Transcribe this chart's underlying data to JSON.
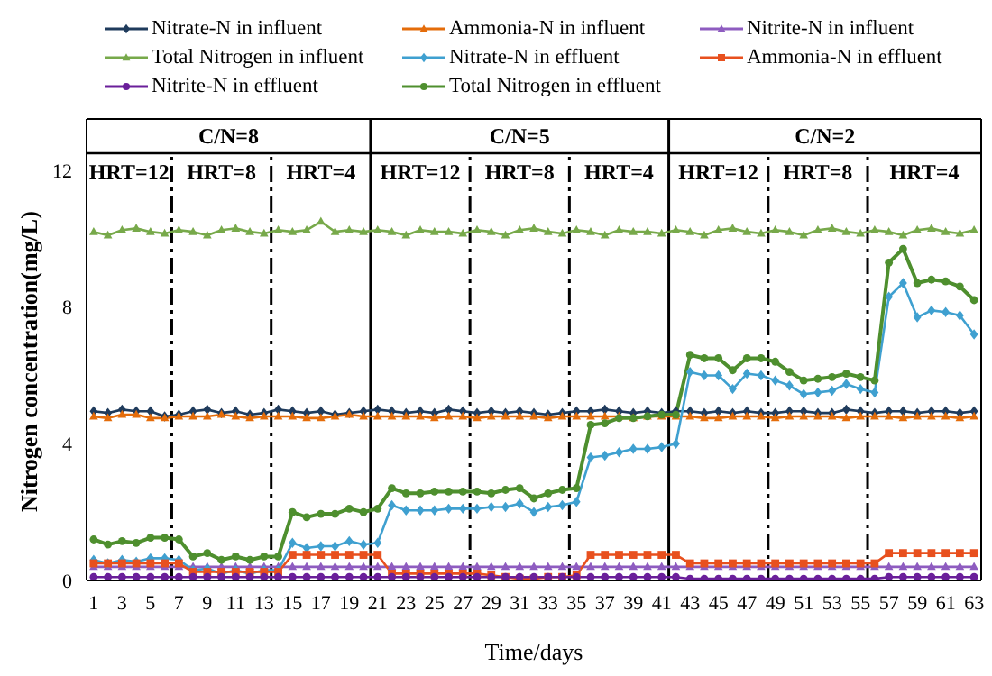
{
  "chart_data": {
    "type": "line",
    "xlabel": "Time/days",
    "ylabel": "Nitrogen concentration(mg/L)",
    "x": [
      1,
      2,
      3,
      4,
      5,
      6,
      7,
      8,
      9,
      10,
      11,
      12,
      13,
      14,
      15,
      16,
      17,
      18,
      19,
      20,
      21,
      22,
      23,
      24,
      25,
      26,
      27,
      28,
      29,
      30,
      31,
      32,
      33,
      34,
      35,
      36,
      37,
      38,
      39,
      40,
      41,
      42,
      43,
      44,
      45,
      46,
      47,
      48,
      49,
      50,
      51,
      52,
      53,
      54,
      55,
      56,
      57,
      58,
      59,
      60,
      61,
      62,
      63
    ],
    "xlim": [
      0.5,
      63.5
    ],
    "xticks": [
      1,
      3,
      5,
      7,
      9,
      11,
      13,
      15,
      17,
      19,
      21,
      23,
      25,
      27,
      29,
      31,
      33,
      35,
      37,
      39,
      41,
      43,
      45,
      47,
      49,
      51,
      53,
      55,
      57,
      59,
      61,
      63
    ],
    "ylim": [
      0,
      13.5
    ],
    "yticks": [
      0,
      4,
      8,
      12
    ],
    "grid": false,
    "legend": "top",
    "series": [
      {
        "name": "Nitrate-N in influent",
        "color": "#1f3b5c",
        "marker": "diamond",
        "values": [
          4.95,
          4.9,
          5.0,
          4.95,
          4.95,
          4.8,
          4.85,
          4.95,
          5.0,
          4.9,
          4.95,
          4.85,
          4.9,
          5.0,
          4.95,
          4.9,
          4.95,
          4.85,
          4.9,
          4.95,
          5.0,
          4.95,
          4.9,
          4.95,
          4.9,
          5.0,
          4.95,
          4.9,
          4.95,
          4.9,
          4.95,
          4.9,
          4.85,
          4.9,
          4.95,
          4.95,
          5.0,
          4.95,
          4.9,
          4.95,
          4.9,
          4.95,
          4.95,
          4.9,
          4.95,
          4.9,
          4.95,
          4.9,
          4.9,
          4.95,
          4.95,
          4.9,
          4.9,
          5.0,
          4.95,
          4.9,
          4.95,
          4.95,
          4.9,
          4.95,
          4.95,
          4.9,
          4.95
        ]
      },
      {
        "name": "Ammonia-N in influent",
        "color": "#e46c0a",
        "marker": "triangle",
        "values": [
          4.8,
          4.75,
          4.85,
          4.85,
          4.75,
          4.75,
          4.8,
          4.8,
          4.8,
          4.85,
          4.8,
          4.75,
          4.8,
          4.8,
          4.8,
          4.75,
          4.75,
          4.8,
          4.85,
          4.8,
          4.8,
          4.8,
          4.8,
          4.8,
          4.75,
          4.8,
          4.8,
          4.75,
          4.8,
          4.8,
          4.8,
          4.8,
          4.75,
          4.8,
          4.8,
          4.8,
          4.8,
          4.8,
          4.75,
          4.8,
          4.8,
          4.8,
          4.8,
          4.75,
          4.75,
          4.8,
          4.8,
          4.8,
          4.75,
          4.8,
          4.8,
          4.8,
          4.8,
          4.75,
          4.8,
          4.8,
          4.8,
          4.75,
          4.8,
          4.8,
          4.8,
          4.75,
          4.8
        ]
      },
      {
        "name": "Nitrite-N in influent",
        "color": "#8e5cc0",
        "marker": "triangle",
        "values": [
          0.4,
          0.4,
          0.4,
          0.4,
          0.4,
          0.4,
          0.4,
          0.4,
          0.4,
          0.4,
          0.4,
          0.4,
          0.4,
          0.4,
          0.4,
          0.4,
          0.4,
          0.4,
          0.4,
          0.4,
          0.4,
          0.4,
          0.4,
          0.4,
          0.4,
          0.4,
          0.4,
          0.4,
          0.4,
          0.4,
          0.4,
          0.4,
          0.4,
          0.4,
          0.4,
          0.4,
          0.4,
          0.4,
          0.4,
          0.4,
          0.4,
          0.4,
          0.4,
          0.4,
          0.4,
          0.4,
          0.4,
          0.4,
          0.4,
          0.4,
          0.4,
          0.4,
          0.4,
          0.4,
          0.4,
          0.4,
          0.4,
          0.4,
          0.4,
          0.4,
          0.4,
          0.4,
          0.4
        ]
      },
      {
        "name": "Total Nitrogen in influent",
        "color": "#77a94a",
        "marker": "triangle",
        "values": [
          10.2,
          10.1,
          10.25,
          10.3,
          10.2,
          10.15,
          10.25,
          10.2,
          10.1,
          10.25,
          10.3,
          10.2,
          10.15,
          10.25,
          10.2,
          10.25,
          10.5,
          10.2,
          10.25,
          10.2,
          10.25,
          10.2,
          10.1,
          10.25,
          10.2,
          10.2,
          10.15,
          10.25,
          10.2,
          10.1,
          10.25,
          10.3,
          10.2,
          10.15,
          10.25,
          10.2,
          10.1,
          10.25,
          10.2,
          10.2,
          10.15,
          10.25,
          10.2,
          10.1,
          10.25,
          10.3,
          10.2,
          10.15,
          10.25,
          10.2,
          10.1,
          10.25,
          10.3,
          10.2,
          10.15,
          10.25,
          10.2,
          10.1,
          10.25,
          10.3,
          10.2,
          10.15,
          10.25
        ]
      },
      {
        "name": "Nitrate-N in effluent",
        "color": "#3fa0d0",
        "marker": "diamond",
        "values": [
          0.6,
          0.5,
          0.6,
          0.55,
          0.65,
          0.65,
          0.6,
          0.3,
          0.35,
          0.2,
          0.3,
          0.2,
          0.3,
          0.3,
          1.1,
          0.95,
          1.0,
          1.0,
          1.15,
          1.05,
          1.1,
          2.2,
          2.05,
          2.05,
          2.05,
          2.1,
          2.1,
          2.1,
          2.15,
          2.15,
          2.25,
          2.0,
          2.15,
          2.2,
          2.3,
          3.6,
          3.65,
          3.75,
          3.85,
          3.85,
          3.9,
          4.0,
          6.1,
          6.0,
          6.0,
          5.6,
          6.05,
          6.0,
          5.85,
          5.7,
          5.45,
          5.5,
          5.55,
          5.75,
          5.6,
          5.5,
          8.3,
          8.7,
          7.7,
          7.9,
          7.85,
          7.75,
          7.2
        ]
      },
      {
        "name": "Ammonia-N in effluent",
        "color": "#e8501e",
        "marker": "square",
        "values": [
          0.5,
          0.5,
          0.5,
          0.5,
          0.5,
          0.5,
          0.5,
          0.25,
          0.25,
          0.25,
          0.25,
          0.25,
          0.25,
          0.25,
          0.75,
          0.75,
          0.75,
          0.75,
          0.75,
          0.75,
          0.75,
          0.2,
          0.2,
          0.2,
          0.2,
          0.2,
          0.2,
          0.2,
          0.15,
          0.1,
          0.05,
          0.05,
          0.1,
          0.1,
          0.15,
          0.75,
          0.75,
          0.75,
          0.75,
          0.75,
          0.75,
          0.75,
          0.5,
          0.5,
          0.5,
          0.5,
          0.5,
          0.5,
          0.5,
          0.5,
          0.5,
          0.5,
          0.5,
          0.5,
          0.5,
          0.5,
          0.8,
          0.8,
          0.8,
          0.8,
          0.8,
          0.8,
          0.8
        ]
      },
      {
        "name": "Nitrite-N in effluent",
        "color": "#6a1f9a",
        "marker": "circle",
        "values": [
          0.1,
          0.1,
          0.1,
          0.1,
          0.1,
          0.1,
          0.1,
          0.1,
          0.1,
          0.1,
          0.1,
          0.1,
          0.1,
          0.1,
          0.1,
          0.1,
          0.1,
          0.1,
          0.1,
          0.1,
          0.1,
          0.1,
          0.1,
          0.1,
          0.1,
          0.1,
          0.1,
          0.1,
          0.1,
          0.1,
          0.1,
          0.1,
          0.1,
          0.1,
          0.1,
          0.1,
          0.1,
          0.1,
          0.1,
          0.1,
          0.1,
          0.1,
          0.05,
          0.05,
          0.05,
          0.05,
          0.05,
          0.05,
          0.05,
          0.05,
          0.05,
          0.05,
          0.05,
          0.05,
          0.05,
          0.05,
          0.1,
          0.1,
          0.1,
          0.1,
          0.1,
          0.1,
          0.1
        ]
      },
      {
        "name": "Total Nitrogen in effluent",
        "color": "#4e8f2e",
        "marker": "circle",
        "values": [
          1.2,
          1.05,
          1.15,
          1.1,
          1.25,
          1.25,
          1.2,
          0.7,
          0.8,
          0.6,
          0.7,
          0.6,
          0.7,
          0.7,
          2.0,
          1.85,
          1.95,
          1.95,
          2.1,
          2.0,
          2.1,
          2.7,
          2.55,
          2.55,
          2.6,
          2.6,
          2.6,
          2.6,
          2.55,
          2.65,
          2.7,
          2.4,
          2.55,
          2.65,
          2.7,
          4.55,
          4.6,
          4.75,
          4.75,
          4.8,
          4.85,
          4.85,
          6.6,
          6.5,
          6.5,
          6.15,
          6.5,
          6.5,
          6.4,
          6.1,
          5.85,
          5.9,
          5.95,
          6.05,
          5.95,
          5.85,
          9.3,
          9.7,
          8.7,
          8.8,
          8.75,
          8.6,
          8.2
        ]
      }
    ],
    "ref_lines": [
      {
        "axis": "y",
        "value": 12.5,
        "label": null,
        "color": "#000000",
        "line_style": "solid"
      },
      {
        "axis": "x",
        "value": 20.5,
        "label": null,
        "color": "#000000",
        "line_style": "solid"
      },
      {
        "axis": "x",
        "value": 41.5,
        "label": null,
        "color": "#000000",
        "line_style": "solid"
      },
      {
        "axis": "x",
        "value": 6.5,
        "label": null,
        "color": "#000000",
        "line_style": "dashed"
      },
      {
        "axis": "x",
        "value": 13.5,
        "label": null,
        "color": "#000000",
        "line_style": "dashed"
      },
      {
        "axis": "x",
        "value": 27.5,
        "label": null,
        "color": "#000000",
        "line_style": "dashed"
      },
      {
        "axis": "x",
        "value": 34.5,
        "label": null,
        "color": "#000000",
        "line_style": "dashed"
      },
      {
        "axis": "x",
        "value": 48.5,
        "label": null,
        "color": "#000000",
        "line_style": "dashed"
      },
      {
        "axis": "x",
        "value": 55.5,
        "label": null,
        "color": "#000000",
        "line_style": "dashed"
      }
    ],
    "annotations": [
      "C/N=8",
      "C/N=5",
      "C/N=2",
      "HRT=12",
      "HRT=8",
      "HRT=4",
      "HRT=12",
      "HRT=8",
      "HRT=4",
      "HRT=12",
      "HRT=8",
      "HRT=4"
    ]
  }
}
